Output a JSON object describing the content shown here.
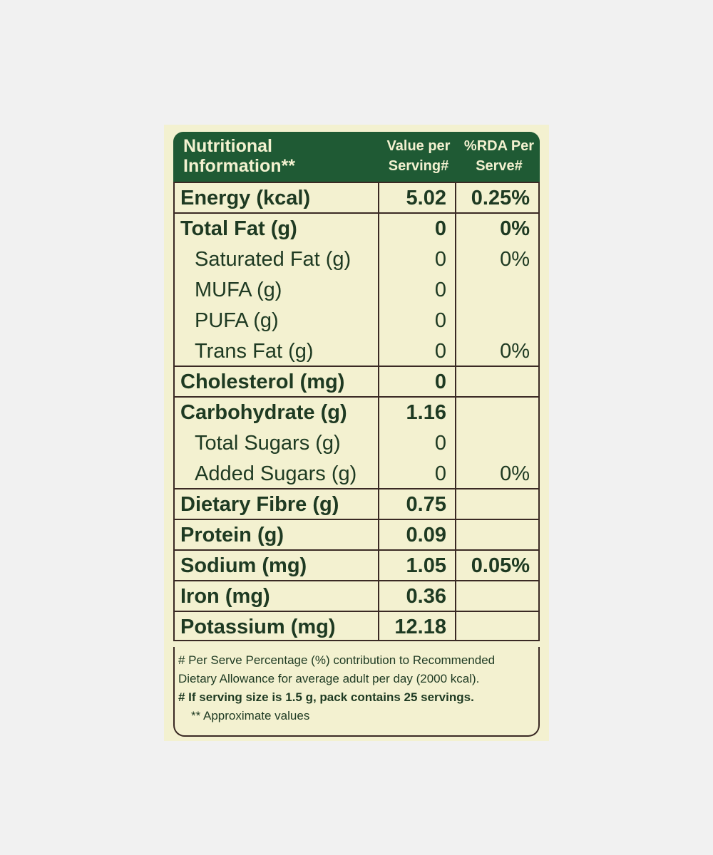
{
  "header": [
    "Nutritional Information**",
    "Value per Serving#",
    "%RDA Per Serve#"
  ],
  "rows": [
    {
      "label": "Energy (kcal)",
      "value": "5.02",
      "rda": "0.25%"
    },
    {
      "label": "Total Fat (g)",
      "value": "0",
      "rda": "0%",
      "sub": [
        {
          "label": "Saturated Fat (g)",
          "value": "0",
          "rda": "0%"
        },
        {
          "label": "MUFA (g)",
          "value": "0"
        },
        {
          "label": "PUFA (g)",
          "value": "0"
        },
        {
          "label": "Trans Fat (g)",
          "value": "0",
          "rda": "0%"
        }
      ]
    },
    {
      "label": "Cholesterol (mg)",
      "value": "0"
    },
    {
      "label": "Carbohydrate (g)",
      "value": "1.16",
      "sub": [
        {
          "label": "Total Sugars (g)",
          "value": "0"
        },
        {
          "label": "Added Sugars (g)",
          "value": "0",
          "rda": "0%"
        }
      ]
    },
    {
      "label": "Dietary Fibre (g)",
      "value": "0.75"
    },
    {
      "label": "Protein (g)",
      "value": "0.09"
    },
    {
      "label": "Sodium (mg)",
      "value": "1.05",
      "rda": "0.05%"
    },
    {
      "label": "Iron (mg)",
      "value": "0.36"
    },
    {
      "label": "Potassium (mg)",
      "value": "12.18"
    }
  ],
  "notes": [
    "# Per Serve Percentage (%) contribution to Recommended Dietary Allowance for average adult per day (2000 kcal).",
    "# If serving size is 1.5 g, pack contains 25 servings.",
    "** Approximate values"
  ]
}
